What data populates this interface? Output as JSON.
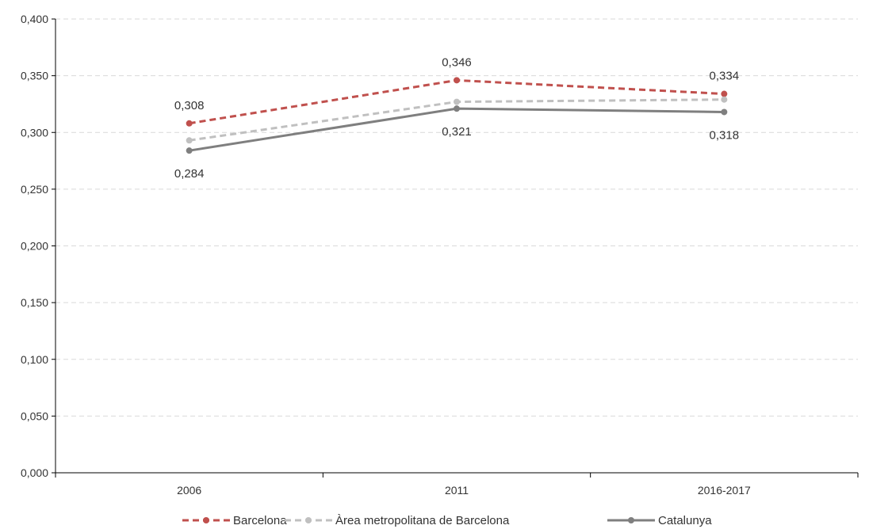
{
  "chart_data": {
    "type": "line",
    "categories": [
      "2006",
      "2011",
      "2016-2017"
    ],
    "y_ticks": [
      "0,000",
      "0,050",
      "0,100",
      "0,150",
      "0,200",
      "0,250",
      "0,300",
      "0,350",
      "0,400"
    ],
    "ylim": [
      0,
      0.4
    ],
    "grid": true,
    "legend_position": "bottom",
    "series": [
      {
        "name": "Barcelona",
        "values": [
          0.308,
          0.346,
          0.334
        ],
        "color": "#c0504d",
        "dash": "dashed"
      },
      {
        "name": "Àrea metropolitana de Barcelona",
        "values": [
          0.293,
          0.327,
          0.329
        ],
        "color": "#c0c0c0",
        "dash": "dashed"
      },
      {
        "name": "Catalunya",
        "values": [
          0.284,
          0.321,
          0.318
        ],
        "color": "#7f7f7f",
        "dash": "solid"
      }
    ],
    "data_labels": [
      {
        "series": 0,
        "point": 0,
        "text": "0,308",
        "pos": "above"
      },
      {
        "series": 0,
        "point": 1,
        "text": "0,346",
        "pos": "above"
      },
      {
        "series": 0,
        "point": 2,
        "text": "0,334",
        "pos": "above"
      },
      {
        "series": 2,
        "point": 0,
        "text": "0,284",
        "pos": "below"
      },
      {
        "series": 2,
        "point": 1,
        "text": "0,321",
        "pos": "below"
      },
      {
        "series": 2,
        "point": 2,
        "text": "0,318",
        "pos": "below"
      }
    ]
  }
}
